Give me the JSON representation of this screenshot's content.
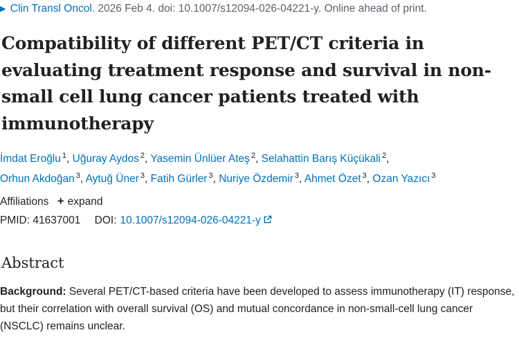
{
  "citation": {
    "journal": "Clin Transl Oncol",
    "details": ". 2026 Feb 4. doi: 10.1007/s12094-026-04221-y. Online ahead of print."
  },
  "article": {
    "title": "Compatibility of different PET/CT criteria in evaluating treatment response and survival in non-small cell lung cancer patients treated with immunotherapy"
  },
  "authors": [
    {
      "name": "İmdat Eroğlu",
      "affil": "1"
    },
    {
      "name": "Uğuray Aydos",
      "affil": "2"
    },
    {
      "name": "Yasemin Ünlüer Ateş",
      "affil": "2"
    },
    {
      "name": "Selahattin Barış Küçükali",
      "affil": "2"
    },
    {
      "name": "Orhun Akdoğan",
      "affil": "3"
    },
    {
      "name": "Aytuğ Üner",
      "affil": "3"
    },
    {
      "name": "Fatih Gürler",
      "affil": "3"
    },
    {
      "name": "Nuriye Özdemir",
      "affil": "3"
    },
    {
      "name": "Ahmet Özet",
      "affil": "3"
    },
    {
      "name": "Ozan Yazıcı",
      "affil": "3"
    }
  ],
  "affiliations": {
    "label": "Affiliations",
    "expand_label": "expand"
  },
  "ids": {
    "pmid_label": "PMID:",
    "pmid": "41637001",
    "doi_label": "DOI:",
    "doi": "10.1007/s12094-026-04221-y"
  },
  "abstract": {
    "heading": "Abstract",
    "background_label": "Background:",
    "background_text": " Several PET/CT-based criteria have been developed to assess immunotherapy (IT) response, but their correlation with overall survival (OS) and mutual concordance in non-small-cell lung cancer (NSCLC) remains unclear."
  },
  "icons": {
    "citation_arrow": "triangle-right-icon",
    "expand": "plus-icon",
    "doi_external": "external-link-icon"
  },
  "colors": {
    "link": "#0071bc",
    "text": "#212121",
    "muted": "#5b616b"
  }
}
